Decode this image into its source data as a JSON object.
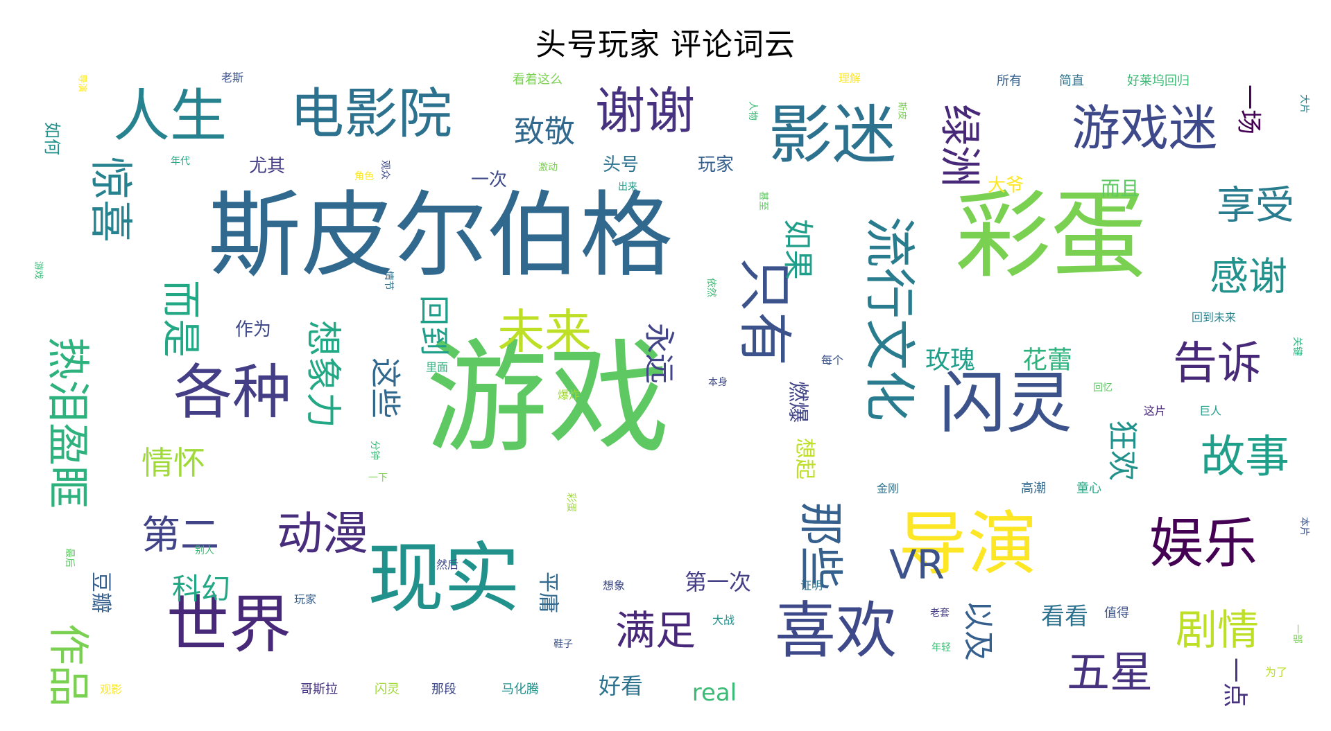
{
  "title": "头号玩家 评论词云",
  "chart_data": {
    "type": "wordcloud",
    "title": "头号玩家 评论词云",
    "colormap": "viridis",
    "words": [
      {
        "text": "游戏",
        "weight": 100,
        "color": "#5ec962"
      },
      {
        "text": "斯皮尔伯格",
        "weight": 86,
        "color": "#31688e"
      },
      {
        "text": "彩蛋",
        "weight": 80,
        "color": "#7ad151"
      },
      {
        "text": "现实",
        "weight": 60,
        "color": "#21918c"
      },
      {
        "text": "导演",
        "weight": 55,
        "color": "#fde725"
      },
      {
        "text": "闪灵",
        "weight": 52,
        "color": "#3b528b"
      },
      {
        "text": "影迷",
        "weight": 50,
        "color": "#2c728e"
      },
      {
        "text": "世界",
        "weight": 50,
        "color": "#482878"
      },
      {
        "text": "喜欢",
        "weight": 48,
        "color": "#3e4989"
      },
      {
        "text": "各种",
        "weight": 48,
        "color": "#433e85"
      },
      {
        "text": "人生",
        "weight": 45,
        "color": "#26828e"
      },
      {
        "text": "电影院",
        "weight": 45,
        "color": "#2c728e"
      },
      {
        "text": "娱乐",
        "weight": 44,
        "color": "#440154"
      },
      {
        "text": "只有",
        "weight": 42,
        "color": "#3b528b"
      },
      {
        "text": "流行文化",
        "weight": 40,
        "color": "#287c8e"
      },
      {
        "text": "游戏迷",
        "weight": 38,
        "color": "#3e4989"
      },
      {
        "text": "谢谢",
        "weight": 37,
        "color": "#46327e"
      },
      {
        "text": "未来",
        "weight": 36,
        "color": "#bddf26"
      },
      {
        "text": "热泪盈眶",
        "weight": 36,
        "color": "#2db27d"
      },
      {
        "text": "故事",
        "weight": 35,
        "color": "#1f9e89"
      },
      {
        "text": "告诉",
        "weight": 35,
        "color": "#482878"
      },
      {
        "text": "剧情",
        "weight": 34,
        "color": "#bddf26"
      },
      {
        "text": "那些",
        "weight": 34,
        "color": "#355f8d"
      },
      {
        "text": "动漫",
        "weight": 34,
        "color": "#472d7b"
      },
      {
        "text": "惊喜",
        "weight": 33,
        "color": "#26828e"
      },
      {
        "text": "而是",
        "weight": 33,
        "color": "#22a884"
      },
      {
        "text": "第二",
        "weight": 32,
        "color": "#414487"
      },
      {
        "text": "满足",
        "weight": 32,
        "color": "#482878"
      },
      {
        "text": "五星",
        "weight": 32,
        "color": "#46327e"
      },
      {
        "text": "感谢",
        "weight": 30,
        "color": "#21918c"
      },
      {
        "text": "享受",
        "weight": 30,
        "color": "#287c8e"
      },
      {
        "text": "VR",
        "weight": 30,
        "color": "#3b528b"
      },
      {
        "text": "绿洲",
        "weight": 30,
        "color": "#482878"
      },
      {
        "text": "作品",
        "weight": 30,
        "color": "#7ad151"
      },
      {
        "text": "想象力",
        "weight": 28,
        "color": "#22a884"
      },
      {
        "text": "情怀",
        "weight": 28,
        "color": "#a0da39"
      },
      {
        "text": "致敬",
        "weight": 26,
        "color": "#31688e"
      },
      {
        "text": "如果",
        "weight": 26,
        "color": "#1f9e89"
      },
      {
        "text": "永远",
        "weight": 26,
        "color": "#414487"
      },
      {
        "text": "这些",
        "weight": 26,
        "color": "#31688e"
      },
      {
        "text": "回到",
        "weight": 26,
        "color": "#1f9e89"
      },
      {
        "text": "以及",
        "weight": 26,
        "color": "#355f8d"
      },
      {
        "text": "狂欢",
        "weight": 26,
        "color": "#21918c"
      },
      {
        "text": "科幻",
        "weight": 25,
        "color": "#22a884"
      },
      {
        "text": "一场",
        "weight": 22,
        "color": "#440154"
      },
      {
        "text": "玫瑰",
        "weight": 22,
        "color": "#1f9e89"
      },
      {
        "text": "花蕾",
        "weight": 22,
        "color": "#2db27d"
      },
      {
        "text": "一点",
        "weight": 22,
        "color": "#46327e"
      },
      {
        "text": "看看",
        "weight": 20,
        "color": "#2c728e"
      },
      {
        "text": "第一次",
        "weight": 20,
        "color": "#433e85"
      },
      {
        "text": "好看",
        "weight": 20,
        "color": "#2c728e"
      },
      {
        "text": "real",
        "weight": 20,
        "color": "#3bbb75"
      },
      {
        "text": "燃爆",
        "weight": 19,
        "color": "#414487"
      },
      {
        "text": "想起",
        "weight": 18,
        "color": "#bddf26"
      },
      {
        "text": "平庸",
        "weight": 18,
        "color": "#31688e"
      },
      {
        "text": "豆瓣",
        "weight": 18,
        "color": "#355f8d"
      },
      {
        "text": "一次",
        "weight": 18,
        "color": "#3e4989"
      },
      {
        "text": "尤其",
        "weight": 18,
        "color": "#433e85"
      },
      {
        "text": "头号",
        "weight": 17,
        "color": "#2c728e"
      },
      {
        "text": "玩家",
        "weight": 17,
        "color": "#355f8d"
      },
      {
        "text": "作为",
        "weight": 17,
        "color": "#3e4989"
      },
      {
        "text": "而且",
        "weight": 16,
        "color": "#5ec962"
      },
      {
        "text": "大爷",
        "weight": 16,
        "color": "#fde725"
      },
      {
        "text": "如何",
        "weight": 16,
        "color": "#21918c"
      },
      {
        "text": "看着这么",
        "weight": 10,
        "color": "#7ad151"
      },
      {
        "text": "所有",
        "weight": 10,
        "color": "#355f8d"
      },
      {
        "text": "简直",
        "weight": 10,
        "color": "#2c728e"
      },
      {
        "text": "好莱坞回归",
        "weight": 10,
        "color": "#3bbb75"
      },
      {
        "text": "理解",
        "weight": 10,
        "color": "#fde725"
      },
      {
        "text": "老斯",
        "weight": 10,
        "color": "#3b528b"
      },
      {
        "text": "回到未来",
        "weight": 10,
        "color": "#26828e"
      },
      {
        "text": "里面",
        "weight": 10,
        "color": "#2db27d"
      },
      {
        "text": "每个",
        "weight": 10,
        "color": "#3b528b"
      },
      {
        "text": "本身",
        "weight": 9,
        "color": "#3e4989"
      },
      {
        "text": "这片",
        "weight": 10,
        "color": "#482878"
      },
      {
        "text": "巨人",
        "weight": 10,
        "color": "#1f9e89"
      },
      {
        "text": "高潮",
        "weight": 10,
        "color": "#31688e"
      },
      {
        "text": "童心",
        "weight": 10,
        "color": "#22a884"
      },
      {
        "text": "金刚",
        "weight": 10,
        "color": "#2c728e"
      },
      {
        "text": "分钟",
        "weight": 9,
        "color": "#3bbb75"
      },
      {
        "text": "一下",
        "weight": 9,
        "color": "#7ad151"
      },
      {
        "text": "爆炸",
        "weight": 10,
        "color": "#a0da39"
      },
      {
        "text": "回忆",
        "weight": 9,
        "color": "#5ec962"
      },
      {
        "text": "想象",
        "weight": 10,
        "color": "#3e4989"
      },
      {
        "text": "证明",
        "weight": 10,
        "color": "#2c728e"
      },
      {
        "text": "老套",
        "weight": 9,
        "color": "#433e85"
      },
      {
        "text": "值得",
        "weight": 10,
        "color": "#3b528b"
      },
      {
        "text": "然后",
        "weight": 10,
        "color": "#3e4989"
      },
      {
        "text": "玩家",
        "weight": 10,
        "color": "#355f8d"
      },
      {
        "text": "大战",
        "weight": 10,
        "color": "#21918c"
      },
      {
        "text": "别人",
        "weight": 9,
        "color": "#3bbb75"
      },
      {
        "text": "哥斯拉",
        "weight": 10,
        "color": "#46327e"
      },
      {
        "text": "闪灵",
        "weight": 10,
        "color": "#a0da39"
      },
      {
        "text": "那段",
        "weight": 10,
        "color": "#3e4989"
      },
      {
        "text": "马化腾",
        "weight": 10,
        "color": "#21918c"
      },
      {
        "text": "观影",
        "weight": 9,
        "color": "#fde725"
      },
      {
        "text": "为了",
        "weight": 10,
        "color": "#bddf26"
      },
      {
        "text": "出来",
        "weight": 9,
        "color": "#1f9e89"
      },
      {
        "text": "激动",
        "weight": 9,
        "color": "#7ad151"
      },
      {
        "text": "角色",
        "weight": 9,
        "color": "#fde725"
      },
      {
        "text": "观众",
        "weight": 9,
        "color": "#3e4989"
      },
      {
        "text": "年代",
        "weight": 9,
        "color": "#22a884"
      },
      {
        "text": "依然",
        "weight": 9,
        "color": "#3bbb75"
      },
      {
        "text": "情节",
        "weight": 9,
        "color": "#2c728e"
      },
      {
        "text": "甚至",
        "weight": 9,
        "color": "#5ec962"
      },
      {
        "text": "年轻",
        "weight": 9,
        "color": "#3bbb75"
      },
      {
        "text": "鞋子",
        "weight": 9,
        "color": "#3b528b"
      },
      {
        "text": "关键",
        "weight": 9,
        "color": "#2db27d"
      },
      {
        "text": "本片",
        "weight": 9,
        "color": "#3b528b"
      },
      {
        "text": "大片",
        "weight": 9,
        "color": "#26828e"
      },
      {
        "text": "一部",
        "weight": 9,
        "color": "#7ad151"
      },
      {
        "text": "人物",
        "weight": 9,
        "color": "#3bbb75"
      },
      {
        "text": "彩蛋",
        "weight": 9,
        "color": "#a0da39"
      },
      {
        "text": "最后",
        "weight": 9,
        "color": "#5ec962"
      },
      {
        "text": "导演",
        "weight": 8,
        "color": "#fde725"
      },
      {
        "text": "游戏",
        "weight": 8,
        "color": "#3bbb75"
      },
      {
        "text": "斯皮",
        "weight": 8,
        "color": "#7ad151"
      }
    ]
  }
}
